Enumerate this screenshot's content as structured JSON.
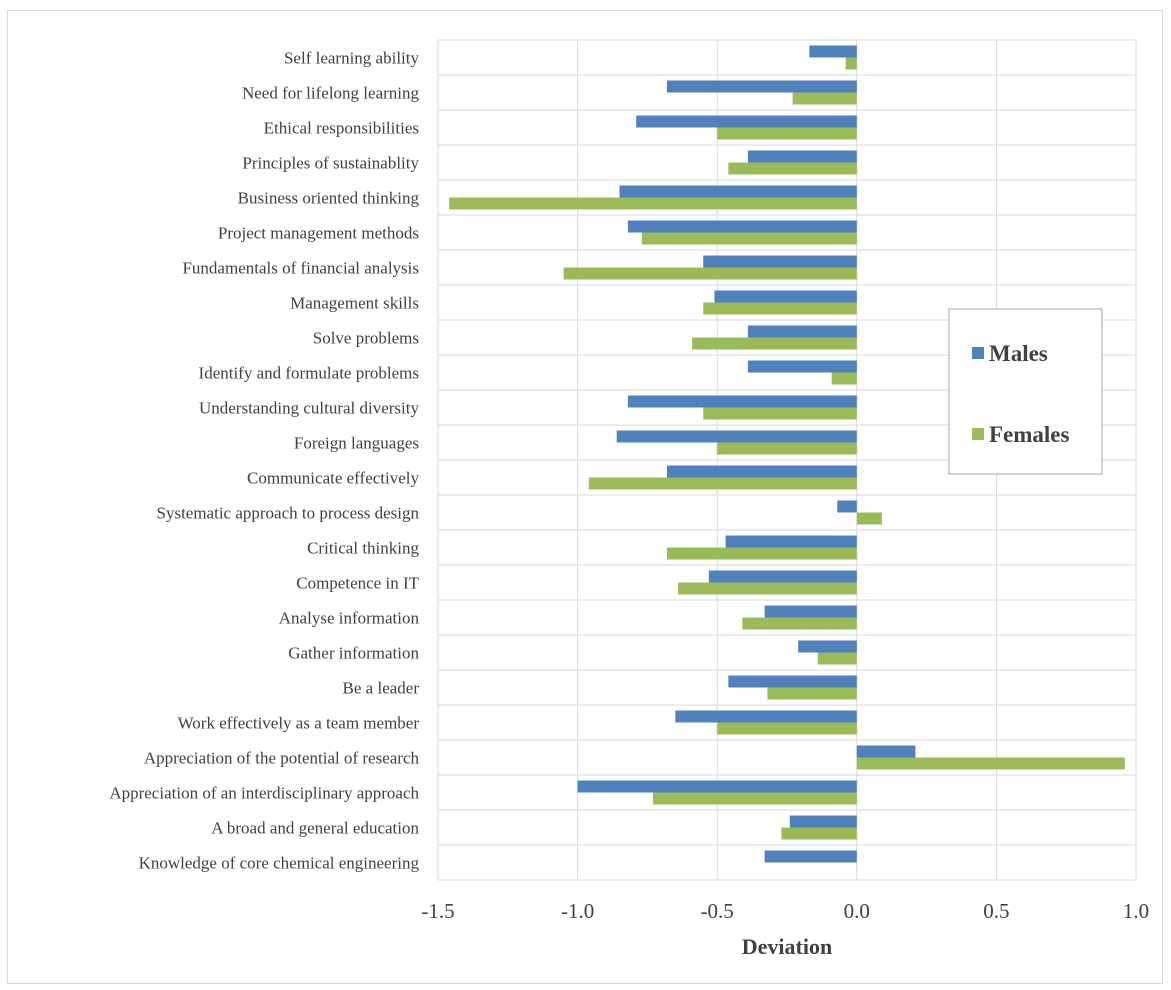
{
  "chart_data": {
    "type": "bar",
    "orientation": "horizontal",
    "title": "",
    "xlabel": "Deviation",
    "ylabel": "",
    "xlim": [
      -1.5,
      1.0
    ],
    "xticks": [
      "-1.5",
      "-1.0",
      "-0.5",
      "0.0",
      "0.5",
      "1.0"
    ],
    "grid": true,
    "legend_position": "right",
    "categories": [
      "Self learning ability",
      "Need for lifelong learning",
      "Ethical responsibilities",
      "Principles of sustainablity",
      "Business oriented thinking",
      "Project management methods",
      "Fundamentals of financial analysis",
      "Management skills",
      "Solve problems",
      "Identify and formulate problems",
      "Understanding cultural diversity",
      "Foreign languages",
      "Communicate effectively",
      "Systematic approach to process design",
      "Critical thinking",
      "Competence in IT",
      "Analyse information",
      "Gather information",
      "Be a leader",
      "Work effectively as a team member",
      "Appreciation of the potential of research",
      "Appreciation of an interdisciplinary approach",
      "A broad and general education",
      "Knowledge of core chemical engineering"
    ],
    "series": [
      {
        "name": "Males",
        "color": "#4f81bd",
        "values": [
          -0.17,
          -0.68,
          -0.79,
          -0.39,
          -0.85,
          -0.82,
          -0.55,
          -0.51,
          -0.39,
          -0.39,
          -0.82,
          -0.86,
          -0.68,
          -0.07,
          -0.47,
          -0.53,
          -0.33,
          -0.21,
          -0.46,
          -0.65,
          0.21,
          -1.0,
          -0.24,
          -0.33
        ]
      },
      {
        "name": "Females",
        "color": "#9bbb59",
        "values": [
          -0.04,
          -0.23,
          -0.5,
          -0.46,
          -1.46,
          -0.77,
          -1.05,
          -0.55,
          -0.59,
          -0.09,
          -0.55,
          -0.5,
          -0.96,
          0.09,
          -0.68,
          -0.64,
          -0.41,
          -0.14,
          -0.32,
          -0.5,
          0.96,
          -0.73,
          -0.27,
          0.0
        ]
      }
    ]
  }
}
